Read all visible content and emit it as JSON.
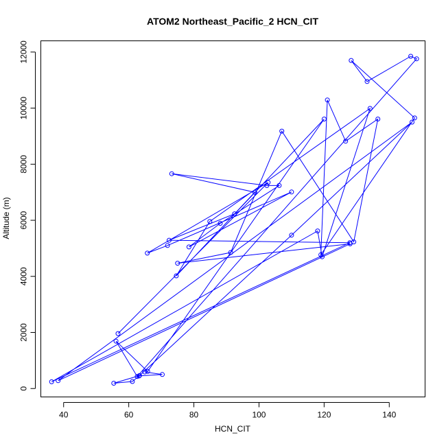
{
  "chart_data": {
    "type": "line",
    "title": "ATOM2 Northeast_Pacific_2 HCN_CIT",
    "xlabel": "HCN_CIT",
    "ylabel": "Altitude (m)",
    "xlim": [
      33,
      151
    ],
    "ylim": [
      -300,
      12400
    ],
    "xticks": [
      40,
      60,
      80,
      100,
      120,
      140
    ],
    "yticks": [
      0,
      2000,
      4000,
      6000,
      8000,
      10000,
      12000
    ],
    "grid": false,
    "legend": "none",
    "color": "#0000ff",
    "series": [
      {
        "x": [
          64.9,
          70.3,
          63.2,
          61.1,
          55.4,
          63.3,
          110.0,
          147.0,
          38.3,
          128.0,
          75.0,
          91.3,
          107.0,
          129.1,
          136.5,
          126.6,
          121.0,
          119.0,
          147.8,
          128.3,
          133.2,
          146.6,
          148.4,
          62.6,
          56.1,
          65.8,
          120.0,
          74.6,
          84.9,
          134.1,
          119.4,
          118.0,
          36.3,
          127.9,
          72.4,
          92.5,
          98.7,
          73.2,
          102.4,
          106.2,
          88.1,
          78.5,
          110.0,
          71.9,
          65.7,
          102.8,
          56.7
        ],
        "y": [
          590,
          500,
          450,
          250,
          190,
          460,
          5470,
          9500,
          280,
          5160,
          4470,
          4850,
          9180,
          5230,
          9610,
          8820,
          10290,
          4770,
          9650,
          11700,
          10950,
          11850,
          11760,
          430,
          1690,
          610,
          9610,
          4020,
          5960,
          9990,
          4700,
          5620,
          240,
          5200,
          5290,
          6230,
          7000,
          7660,
          7240,
          7240,
          5890,
          5050,
          7010,
          5100,
          4830,
          7350,
          1960
        ]
      }
    ]
  }
}
